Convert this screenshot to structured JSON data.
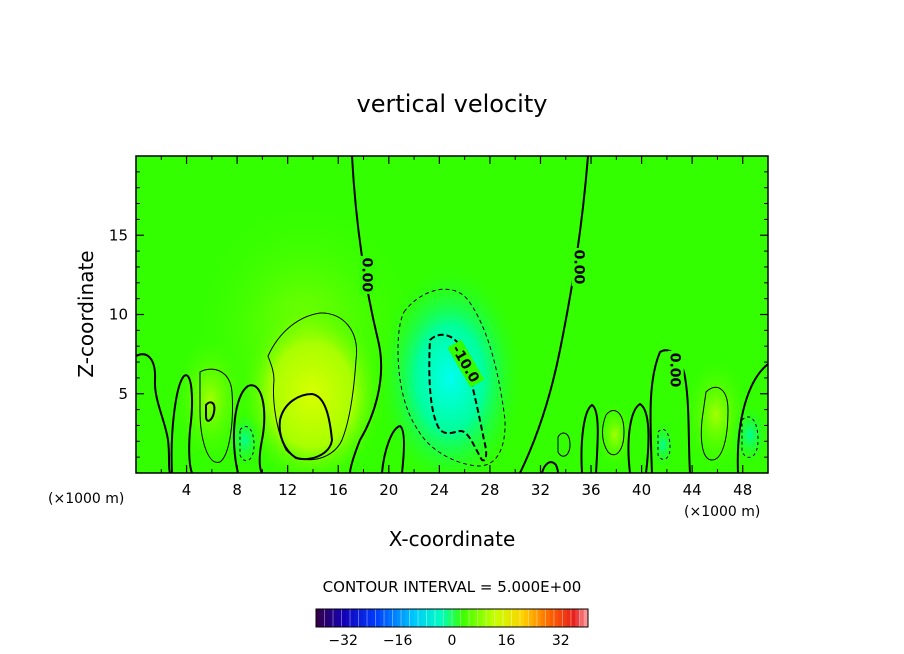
{
  "chart_data": {
    "type": "heatmap",
    "title": "vertical velocity",
    "xlabel": "X-coordinate",
    "ylabel": "Z-coordinate",
    "xunit_left": "(×1000 m)",
    "xunit_right": "(×1000 m)",
    "xlim": [
      0,
      50
    ],
    "ylim": [
      0,
      20
    ],
    "xticks": [
      4,
      8,
      12,
      16,
      20,
      24,
      28,
      32,
      36,
      40,
      44,
      48
    ],
    "yticks": [
      5,
      10,
      15
    ],
    "contour_labels": [
      {
        "text": "0.00",
        "x": 18.3,
        "y": 12.5,
        "rotation": 90
      },
      {
        "text": "0.00",
        "x": 35.1,
        "y": 13.0,
        "rotation": 90
      },
      {
        "text": "0.00",
        "x": 42.7,
        "y": 6.5,
        "rotation": 90
      },
      {
        "text": "-10.0",
        "x": 26.1,
        "y": 6.9,
        "rotation": 60
      }
    ],
    "field_features": [
      {
        "kind": "updraft",
        "x": 13.8,
        "y": 3.0,
        "peak": 15
      },
      {
        "kind": "downdraft",
        "x": 25.5,
        "y": 5.5,
        "peak": -14
      },
      {
        "kind": "updraft",
        "x": 5.8,
        "y": 4.5,
        "peak": 8
      },
      {
        "kind": "updraft",
        "x": 45.5,
        "y": 3.5,
        "peak": 8
      },
      {
        "kind": "downdraft",
        "x": 8.5,
        "y": 2.0,
        "peak": -5
      },
      {
        "kind": "downdraft",
        "x": 48.0,
        "y": 2.2,
        "peak": -5
      }
    ],
    "contour_interval_label": "CONTOUR INTERVAL = 5.000E+00",
    "colorbar": {
      "min": -40,
      "max": 40,
      "ticks": [
        {
          "value": -32,
          "label": "−32"
        },
        {
          "value": -16,
          "label": "−16"
        },
        {
          "value": 0,
          "label": "0"
        },
        {
          "value": 16,
          "label": "16"
        },
        {
          "value": 32,
          "label": "32"
        }
      ]
    },
    "colors": {
      "background_field": "#33ff00",
      "updraft": "#b7ff00",
      "downdraft": "#00ffd0",
      "frame": "#000000"
    }
  }
}
